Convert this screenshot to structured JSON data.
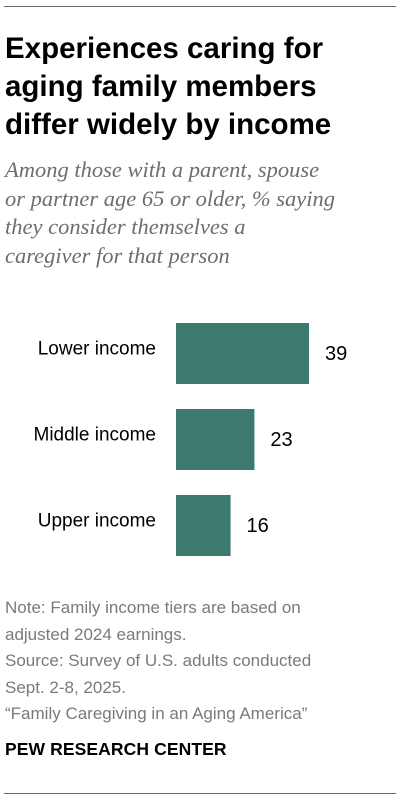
{
  "title_lines": [
    "Experiences caring for",
    "aging family members",
    "differ widely by income"
  ],
  "subtitle_lines": [
    "Among those with a parent, spouse",
    "or partner age 65 or older, % saying",
    "they consider themselves a",
    "caregiver for that person"
  ],
  "notes": {
    "note_lines": [
      "Note: Family income tiers are based on",
      "adjusted 2024 earnings."
    ],
    "source_lines": [
      "Source: Survey of U.S. adults conducted",
      "Sept. 2-8, 2025."
    ],
    "report": "“Family Caregiving in an Aging America”"
  },
  "brand": "PEW RESEARCH CENTER",
  "colors": {
    "bar": "#3b7a6d",
    "note_text": "#7a7a7a",
    "subtitle_text": "#6e6e6e"
  },
  "chart_data": {
    "type": "bar",
    "orientation": "horizontal",
    "categories": [
      "Lower income",
      "Middle income",
      "Upper income"
    ],
    "values": [
      39,
      23,
      16
    ],
    "xlim": [
      0,
      100
    ],
    "grid": false,
    "data_labels": true
  }
}
